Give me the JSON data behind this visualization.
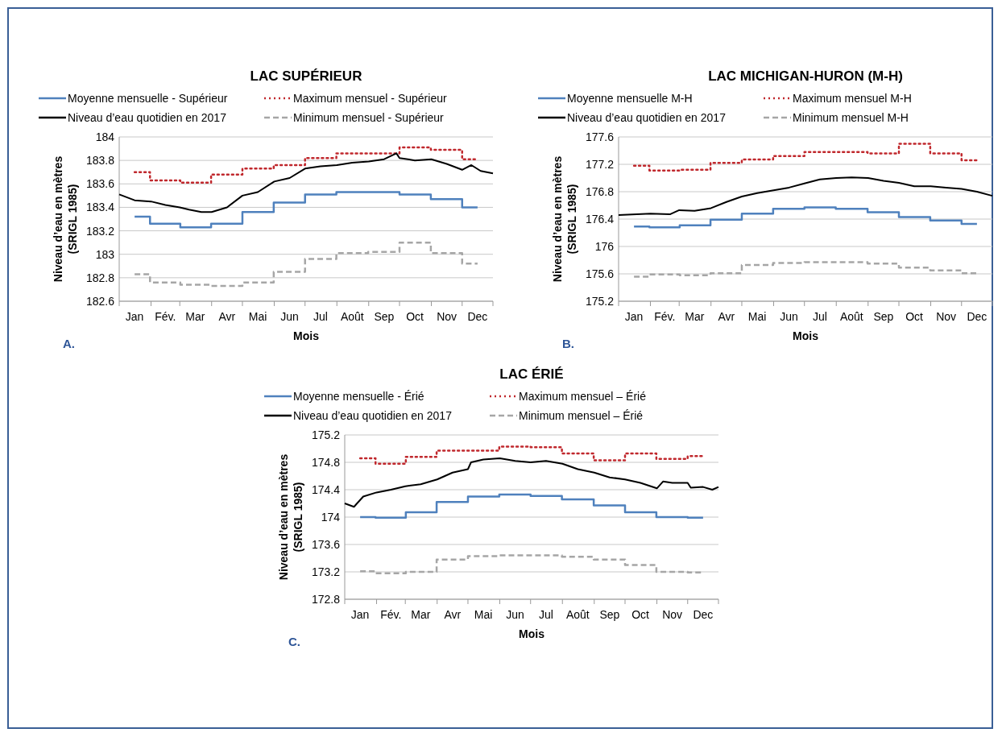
{
  "chart_data": [
    {
      "type": "line",
      "title": "LAC SUPÉRIEUR",
      "xlabel": "Mois",
      "ylabel": "Niveau d’eau en mètres\n(SRIGL 1985)",
      "annotations": [
        "A."
      ],
      "grid": "y",
      "legend": "top",
      "xlim": [
        "--01-01",
        "--12-31"
      ],
      "xticks": [
        {
          "value": "--01-01",
          "label": null
        },
        {
          "value": "--01-16",
          "label": "Jan"
        },
        {
          "value": "--02-01",
          "label": null
        },
        {
          "value": "--02-15",
          "label": "Fév."
        },
        {
          "value": "--03-01",
          "label": null
        },
        {
          "value": "--03-16",
          "label": "Mar"
        },
        {
          "value": "--04-01",
          "label": null
        },
        {
          "value": "--04-16",
          "label": "Avr"
        },
        {
          "value": "--05-01",
          "label": null
        },
        {
          "value": "--05-16",
          "label": "Mai"
        },
        {
          "value": "--06-01",
          "label": null
        },
        {
          "value": "--06-16",
          "label": "Jun"
        },
        {
          "value": "--07-01",
          "label": null
        },
        {
          "value": "--07-16",
          "label": "Jul"
        },
        {
          "value": "--08-01",
          "label": null
        },
        {
          "value": "--08-16",
          "label": "Août"
        },
        {
          "value": "--09-01",
          "label": null
        },
        {
          "value": "--09-16",
          "label": "Sep"
        },
        {
          "value": "--10-01",
          "label": null
        },
        {
          "value": "--10-16",
          "label": "Oct"
        },
        {
          "value": "--11-01",
          "label": null
        },
        {
          "value": "--11-16",
          "label": "Nov"
        },
        {
          "value": "--12-01",
          "label": null
        },
        {
          "value": "--12-16",
          "label": "Dec"
        },
        {
          "value": "--12-31",
          "label": null
        }
      ],
      "ylim": [
        182.6,
        184
      ],
      "yticks": [
        182.6,
        182.8,
        183,
        183.2,
        183.4,
        183.6,
        183.8,
        184
      ],
      "series": [
        {
          "name": "Moyenne mensuelle - Supérieur",
          "type": "step",
          "color": "#4f81bd",
          "line_style": "solid",
          "x": [
            "--01-16",
            "--02-15",
            "--03-16",
            "--04-16",
            "--05-16",
            "--06-16",
            "--07-16",
            "--08-16",
            "--09-16",
            "--10-16",
            "--11-16",
            "--12-16"
          ],
          "values": [
            183.32,
            183.26,
            183.23,
            183.26,
            183.36,
            183.44,
            183.51,
            183.53,
            183.53,
            183.51,
            183.47,
            183.4
          ]
        },
        {
          "name": "Maximum mensuel - Supérieur",
          "type": "step",
          "color": "#c0282d",
          "line_style": "dotted",
          "x": [
            "--01-16",
            "--02-15",
            "--03-16",
            "--04-16",
            "--05-16",
            "--06-16",
            "--07-16",
            "--08-16",
            "--09-16",
            "--10-16",
            "--11-16",
            "--12-16"
          ],
          "values": [
            183.7,
            183.63,
            183.61,
            183.68,
            183.73,
            183.76,
            183.82,
            183.86,
            183.86,
            183.91,
            183.89,
            183.81
          ]
        },
        {
          "name": "Niveau d’eau quotidien en 2017",
          "type": "line",
          "color": "#000000",
          "line_style": "solid",
          "x": [
            "--01-01",
            "--01-16",
            "--02-01",
            "--02-15",
            "--03-01",
            "--03-10",
            "--03-22",
            "--04-01",
            "--04-16",
            "--05-01",
            "--05-16",
            "--06-01",
            "--06-16",
            "--07-01",
            "--07-16",
            "--08-01",
            "--08-16",
            "--09-01",
            "--09-16",
            "--09-28",
            "--10-01",
            "--10-16",
            "--11-01",
            "--11-16",
            "--12-01",
            "--12-10",
            "--12-19",
            "--12-31"
          ],
          "values": [
            183.51,
            183.46,
            183.45,
            183.42,
            183.4,
            183.38,
            183.36,
            183.36,
            183.4,
            183.5,
            183.53,
            183.62,
            183.65,
            183.73,
            183.75,
            183.76,
            183.78,
            183.79,
            183.81,
            183.86,
            183.82,
            183.8,
            183.81,
            183.77,
            183.72,
            183.76,
            183.71,
            183.69
          ]
        },
        {
          "name": "Minimum mensuel - Supérieur",
          "type": "step",
          "color": "#a6a6a6",
          "line_style": "dashed",
          "x": [
            "--01-16",
            "--02-15",
            "--03-16",
            "--04-16",
            "--05-16",
            "--06-16",
            "--07-16",
            "--08-16",
            "--09-16",
            "--10-16",
            "--11-16",
            "--12-16"
          ],
          "values": [
            182.83,
            182.76,
            182.74,
            182.73,
            182.76,
            182.85,
            182.96,
            183.01,
            183.02,
            183.1,
            183.01,
            182.92
          ]
        }
      ]
    },
    {
      "type": "line",
      "title": "LAC MICHIGAN-HURON (M-H)",
      "xlabel": "Mois",
      "ylabel": "Niveau d’eau en mètres\n(SRIGL 1985)",
      "annotations": [
        "B."
      ],
      "grid": "y",
      "legend": "top",
      "xlim": [
        "--01-01",
        "--12-31"
      ],
      "xticks": [
        {
          "value": "--01-01",
          "label": null
        },
        {
          "value": "--01-16",
          "label": "Jan"
        },
        {
          "value": "--02-01",
          "label": null
        },
        {
          "value": "--02-15",
          "label": "Fév."
        },
        {
          "value": "--03-01",
          "label": null
        },
        {
          "value": "--03-16",
          "label": "Mar"
        },
        {
          "value": "--04-01",
          "label": null
        },
        {
          "value": "--04-16",
          "label": "Avr"
        },
        {
          "value": "--05-01",
          "label": null
        },
        {
          "value": "--05-16",
          "label": "Mai"
        },
        {
          "value": "--06-01",
          "label": null
        },
        {
          "value": "--06-16",
          "label": "Jun"
        },
        {
          "value": "--07-01",
          "label": null
        },
        {
          "value": "--07-16",
          "label": "Jul"
        },
        {
          "value": "--08-01",
          "label": null
        },
        {
          "value": "--08-16",
          "label": "Août"
        },
        {
          "value": "--09-01",
          "label": null
        },
        {
          "value": "--09-16",
          "label": "Sep"
        },
        {
          "value": "--10-01",
          "label": null
        },
        {
          "value": "--10-16",
          "label": "Oct"
        },
        {
          "value": "--11-01",
          "label": null
        },
        {
          "value": "--11-16",
          "label": "Nov"
        },
        {
          "value": "--12-01",
          "label": null
        },
        {
          "value": "--12-16",
          "label": "Dec"
        },
        {
          "value": "--12-31",
          "label": null
        }
      ],
      "ylim": [
        175.2,
        177.6
      ],
      "yticks": [
        175.2,
        175.6,
        176,
        176.4,
        176.8,
        177.2,
        177.6
      ],
      "series": [
        {
          "name": "Moyenne mensuelle M-H",
          "type": "step",
          "color": "#4f81bd",
          "line_style": "solid",
          "x": [
            "--01-16",
            "--02-15",
            "--03-16",
            "--04-16",
            "--05-16",
            "--06-16",
            "--07-16",
            "--08-16",
            "--09-16",
            "--10-16",
            "--11-16",
            "--12-16"
          ],
          "values": [
            176.29,
            176.28,
            176.31,
            176.39,
            176.48,
            176.55,
            176.57,
            176.55,
            176.5,
            176.43,
            176.38,
            176.33
          ]
        },
        {
          "name": "Maximum mensuel M-H",
          "type": "step",
          "color": "#c0282d",
          "line_style": "dotted",
          "x": [
            "--01-16",
            "--02-15",
            "--03-16",
            "--04-16",
            "--05-16",
            "--06-16",
            "--07-16",
            "--08-16",
            "--09-16",
            "--10-16",
            "--11-16",
            "--12-16"
          ],
          "values": [
            177.18,
            177.11,
            177.12,
            177.22,
            177.27,
            177.32,
            177.38,
            177.38,
            177.36,
            177.5,
            177.36,
            177.26
          ]
        },
        {
          "name": "Niveau d’eau quotidien en 2017",
          "type": "line",
          "color": "#000000",
          "line_style": "solid",
          "x": [
            "--01-01",
            "--02-01",
            "--02-20",
            "--03-01",
            "--03-16",
            "--04-01",
            "--04-16",
            "--05-01",
            "--05-16",
            "--06-01",
            "--06-16",
            "--07-01",
            "--07-16",
            "--08-01",
            "--08-16",
            "--09-01",
            "--09-16",
            "--10-01",
            "--10-16",
            "--11-01",
            "--11-16",
            "--12-01",
            "--12-16",
            "--12-31"
          ],
          "values": [
            176.46,
            176.48,
            176.47,
            176.53,
            176.52,
            176.56,
            176.65,
            176.73,
            176.78,
            176.82,
            176.86,
            176.92,
            176.98,
            177.0,
            177.01,
            177.0,
            176.96,
            176.93,
            176.88,
            176.88,
            176.86,
            176.84,
            176.8,
            176.74
          ]
        },
        {
          "name": "Minimum mensuel M-H",
          "type": "step",
          "color": "#a6a6a6",
          "line_style": "dashed",
          "x": [
            "--01-16",
            "--02-15",
            "--03-16",
            "--04-16",
            "--05-16",
            "--06-16",
            "--07-16",
            "--08-16",
            "--09-16",
            "--10-16",
            "--11-16",
            "--12-16"
          ],
          "values": [
            175.56,
            175.59,
            175.58,
            175.61,
            175.73,
            175.76,
            175.77,
            175.77,
            175.75,
            175.69,
            175.65,
            175.61
          ]
        }
      ]
    },
    {
      "type": "line",
      "title": "LAC ÉRIÉ",
      "xlabel": "Mois",
      "ylabel": "Niveau d’eau en mètres\n(SRIGL 1985)",
      "annotations": [
        "C."
      ],
      "grid": "y",
      "legend": "top",
      "xlim": [
        "--01-01",
        "--12-31"
      ],
      "xticks": [
        {
          "value": "--01-01",
          "label": null
        },
        {
          "value": "--01-16",
          "label": "Jan"
        },
        {
          "value": "--02-01",
          "label": null
        },
        {
          "value": "--02-15",
          "label": "Fév."
        },
        {
          "value": "--03-01",
          "label": null
        },
        {
          "value": "--03-16",
          "label": "Mar"
        },
        {
          "value": "--04-01",
          "label": null
        },
        {
          "value": "--04-16",
          "label": "Avr"
        },
        {
          "value": "--05-01",
          "label": null
        },
        {
          "value": "--05-16",
          "label": "Mai"
        },
        {
          "value": "--06-01",
          "label": null
        },
        {
          "value": "--06-16",
          "label": "Jun"
        },
        {
          "value": "--07-01",
          "label": null
        },
        {
          "value": "--07-16",
          "label": "Jul"
        },
        {
          "value": "--08-01",
          "label": null
        },
        {
          "value": "--08-16",
          "label": "Août"
        },
        {
          "value": "--09-01",
          "label": null
        },
        {
          "value": "--09-16",
          "label": "Sep"
        },
        {
          "value": "--10-01",
          "label": null
        },
        {
          "value": "--10-16",
          "label": "Oct"
        },
        {
          "value": "--11-01",
          "label": null
        },
        {
          "value": "--11-16",
          "label": "Nov"
        },
        {
          "value": "--12-01",
          "label": null
        },
        {
          "value": "--12-16",
          "label": "Dec"
        },
        {
          "value": "--12-31",
          "label": null
        }
      ],
      "ylim": [
        172.8,
        175.2
      ],
      "yticks": [
        172.8,
        173.2,
        173.6,
        174,
        174.4,
        174.8,
        175.2
      ],
      "series": [
        {
          "name": "Moyenne mensuelle - Érié",
          "type": "step",
          "color": "#4f81bd",
          "line_style": "solid",
          "x": [
            "--01-16",
            "--02-15",
            "--03-16",
            "--04-16",
            "--05-16",
            "--06-16",
            "--07-16",
            "--08-16",
            "--09-16",
            "--10-16",
            "--11-16",
            "--12-16"
          ],
          "values": [
            174.0,
            173.99,
            174.07,
            174.22,
            174.3,
            174.33,
            174.31,
            174.26,
            174.17,
            174.07,
            174.0,
            173.99
          ]
        },
        {
          "name": "Maximum mensuel – Érié",
          "type": "step",
          "color": "#c0282d",
          "line_style": "dotted",
          "x": [
            "--01-16",
            "--02-15",
            "--03-16",
            "--04-16",
            "--05-16",
            "--06-16",
            "--07-16",
            "--08-16",
            "--09-16",
            "--10-16",
            "--11-16",
            "--12-16"
          ],
          "values": [
            174.86,
            174.78,
            174.88,
            174.97,
            174.97,
            175.03,
            175.02,
            174.93,
            174.83,
            174.93,
            174.85,
            174.89
          ]
        },
        {
          "name": "Niveau d’eau quotidien en 2017",
          "type": "line",
          "color": "#000000",
          "line_style": "solid",
          "x": [
            "--01-01",
            "--01-10",
            "--01-19",
            "--02-01",
            "--02-15",
            "--03-01",
            "--03-16",
            "--04-01",
            "--04-16",
            "--05-01",
            "--05-04",
            "--05-16",
            "--06-01",
            "--06-16",
            "--07-01",
            "--07-16",
            "--08-01",
            "--08-16",
            "--09-01",
            "--09-16",
            "--10-01",
            "--10-16",
            "--11-01",
            "--11-07",
            "--11-16",
            "--12-01",
            "--12-04",
            "--12-16",
            "--12-25",
            "--12-31"
          ],
          "values": [
            174.2,
            174.15,
            174.3,
            174.36,
            174.4,
            174.45,
            174.48,
            174.55,
            174.65,
            174.7,
            174.8,
            174.84,
            174.86,
            174.82,
            174.8,
            174.82,
            174.78,
            174.7,
            174.65,
            174.58,
            174.55,
            174.5,
            174.42,
            174.52,
            174.5,
            174.5,
            174.43,
            174.44,
            174.4,
            174.44
          ]
        },
        {
          "name": "Minimum mensuel – Érié",
          "type": "step",
          "color": "#a6a6a6",
          "line_style": "dashed",
          "x": [
            "--01-16",
            "--02-15",
            "--03-16",
            "--04-16",
            "--05-16",
            "--06-16",
            "--07-16",
            "--08-16",
            "--09-16",
            "--10-16",
            "--11-16",
            "--12-16"
          ],
          "values": [
            173.21,
            173.18,
            173.2,
            173.38,
            173.43,
            173.44,
            173.44,
            173.42,
            173.38,
            173.3,
            173.2,
            173.19
          ]
        }
      ]
    }
  ]
}
